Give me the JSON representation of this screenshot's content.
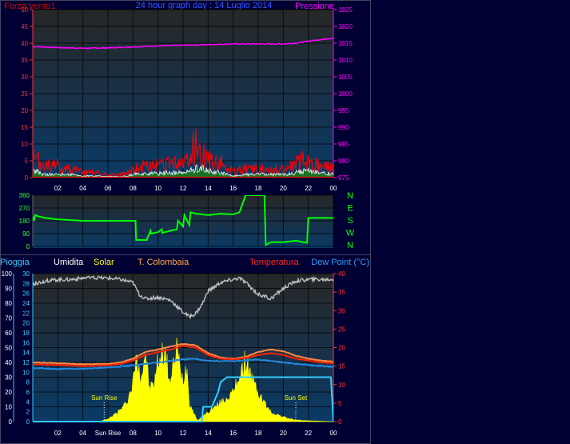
{
  "header": {
    "title": "24 hour graph day : 14 Luglio 2014",
    "wind_label": "Forza vento1",
    "pressure_label": "Pressione"
  },
  "lower_header": {
    "rain": "Pioggia",
    "humidity": "Umidita",
    "solar": "Solar",
    "colombaia": "T. Colombaia",
    "temperature": "Temperatura",
    "dewpoint": "Dew Point (°C)"
  },
  "colors": {
    "background": "#000033",
    "plot_gradient_top": "#272727",
    "plot_gradient_bottom": "#0a3a66",
    "wind": "#ff0000",
    "wind_avg": "#ffffff",
    "wind_low": "#1c7a1c",
    "pressure": "#ff00ff",
    "direction": "#00ff00",
    "humidity": "#c0c0c0",
    "solar": "#ffff00",
    "rain": "#33ccff",
    "temperature": "#ff2200",
    "colombaia": "#ff8844",
    "dewpoint": "#2288dd",
    "axis_left": "#ff3333",
    "axis_rain": "#33ccff",
    "axis_right_pressure": "#ff00ff",
    "axis_right_temp": "#ff3333",
    "time_labels": "#ffffff"
  },
  "x_ticks": [
    "02",
    "04",
    "Sun Rise",
    "08",
    "10",
    "12",
    "14",
    "16",
    "18",
    "20",
    "22",
    "00"
  ],
  "chart_data": [
    {
      "type": "line",
      "name": "wind-pressure",
      "title": "24 hour graph day : 14 Luglio 2014",
      "xlabel": "",
      "ylabel": "Forza vento1",
      "y2label": "Pressione",
      "xlim": [
        0,
        24
      ],
      "ylim": [
        0,
        50
      ],
      "y_ticks": [
        0,
        5,
        10,
        15,
        20,
        25,
        30,
        35,
        40,
        45,
        50
      ],
      "y2lim": [
        975,
        1025
      ],
      "y2_ticks": [
        975,
        980,
        985,
        990,
        995,
        1000,
        1005,
        1010,
        1015,
        1020,
        1025
      ],
      "series": [
        {
          "name": "Pressione",
          "axis": "right",
          "x": [
            0,
            2,
            4,
            6,
            8,
            10,
            12,
            14,
            16,
            18,
            20,
            21,
            22,
            23,
            24
          ],
          "y": [
            1014.0,
            1013.7,
            1013.5,
            1013.6,
            1013.9,
            1014.2,
            1014.4,
            1014.6,
            1014.8,
            1014.8,
            1014.8,
            1015.0,
            1015.6,
            1016.1,
            1016.5
          ]
        }
      ],
      "wind_profile": {
        "x": [
          0,
          0.3,
          0.8,
          1.5,
          2,
          3,
          4,
          5,
          6,
          7,
          7.6,
          8,
          9,
          10,
          10.5,
          11,
          12,
          12.5,
          13,
          13.5,
          14,
          15,
          16,
          17,
          18,
          19,
          20,
          20.7,
          21.5,
          22.5,
          23,
          24
        ],
        "gust": [
          6,
          6,
          4,
          4,
          4,
          3,
          2,
          2,
          1,
          1,
          2,
          3,
          4,
          4,
          4,
          5,
          5,
          6,
          12,
          8,
          6,
          5,
          2,
          3,
          3,
          3,
          3,
          4,
          6,
          5,
          4,
          3
        ],
        "avg": [
          2,
          2,
          1,
          1,
          1,
          1,
          0.5,
          0.5,
          0.3,
          0.3,
          0.5,
          1,
          1.3,
          1.3,
          1.5,
          1.5,
          1.5,
          2,
          3,
          3,
          2,
          1.5,
          0.5,
          1,
          1,
          1,
          1,
          1.2,
          2,
          2,
          1.5,
          1
        ]
      }
    },
    {
      "type": "line",
      "name": "wind-direction",
      "xlim": [
        0,
        24
      ],
      "ylim": [
        0,
        360
      ],
      "y_ticks": [
        0,
        90,
        180,
        270,
        360
      ],
      "right_labels": [
        "N",
        "W",
        "S",
        "E",
        "N"
      ],
      "series": [
        {
          "name": "direction",
          "x": [
            0,
            0.1,
            0.2,
            0.5,
            1,
            2,
            3,
            4,
            5,
            6,
            7,
            8.2,
            8.25,
            9.1,
            9.15,
            9.4,
            9.45,
            10,
            10.3,
            10.35,
            11,
            11.5,
            11.6,
            12,
            12.1,
            12.5,
            12.6,
            13,
            14,
            15,
            16,
            16.5,
            17,
            17.5,
            18,
            18.5,
            18.6,
            19,
            20,
            21,
            21.9,
            22.0,
            23,
            24
          ],
          "y": [
            210,
            180,
            220,
            210,
            200,
            190,
            185,
            180,
            180,
            180,
            180,
            180,
            45,
            45,
            60,
            110,
            90,
            100,
            120,
            95,
            110,
            120,
            180,
            140,
            220,
            150,
            240,
            230,
            220,
            230,
            225,
            240,
            360,
            360,
            360,
            360,
            10,
            30,
            30,
            40,
            25,
            200,
            200,
            200
          ]
        }
      ]
    },
    {
      "type": "area",
      "name": "solar-temp-humidity-rain",
      "xlim": [
        0,
        24
      ],
      "humidity": {
        "name": "Umidita",
        "ylim": [
          0,
          100
        ],
        "y_ticks": [
          0,
          10,
          20,
          30,
          40,
          50,
          60,
          70,
          80,
          90,
          100
        ],
        "x": [
          0,
          1,
          2,
          3,
          4,
          5,
          6,
          7,
          8,
          8.5,
          9,
          10,
          11,
          11.5,
          12,
          12.5,
          13,
          13.5,
          14,
          15,
          16,
          16.5,
          17,
          18,
          19,
          20,
          21,
          22,
          23,
          24
        ],
        "y": [
          93,
          95,
          96,
          96,
          97,
          97,
          97,
          96,
          94,
          86,
          83,
          84,
          82,
          78,
          74,
          71,
          73,
          79,
          88,
          94,
          96,
          97,
          94,
          86,
          83,
          90,
          95,
          96,
          96,
          96
        ]
      },
      "rain": {
        "name": "Pioggia",
        "ylim": [
          0,
          30
        ],
        "y_ticks": [
          0,
          2,
          4,
          6,
          8,
          10,
          12,
          14,
          16,
          18,
          20,
          22,
          24,
          26,
          28,
          30
        ],
        "x": [
          0,
          13.5,
          13.6,
          14.3,
          14.8,
          15,
          15.5,
          16,
          23.8,
          24
        ],
        "y": [
          0,
          0,
          3,
          3,
          6,
          8,
          9,
          9,
          9,
          0
        ]
      },
      "solar": {
        "name": "Solar",
        "ylim": [
          0,
          30
        ],
        "x": [
          0,
          5.3,
          6,
          6.5,
          7,
          7.5,
          8,
          8.2,
          8.7,
          9,
          9.3,
          9.7,
          10,
          10.5,
          11,
          11.5,
          11.8,
          12,
          12.3,
          12.5,
          13,
          13.2,
          13.5,
          14,
          14.5,
          15,
          15.5,
          16,
          16.5,
          17,
          17.5,
          18,
          18.5,
          19,
          20,
          21,
          24
        ],
        "y": [
          0,
          0,
          0.5,
          1.5,
          2.5,
          4,
          8,
          13,
          10,
          15,
          7,
          8,
          13,
          15,
          8,
          16,
          10,
          9,
          12,
          4,
          1,
          0.2,
          1,
          2,
          3,
          4,
          5,
          6,
          10,
          13,
          9,
          6,
          4,
          2,
          1,
          0.3,
          0
        ]
      },
      "temperature": {
        "name": "Temperatura",
        "ylim": [
          0,
          40
        ],
        "y_ticks": [
          0,
          5,
          10,
          15,
          20,
          25,
          30,
          35,
          40
        ],
        "x": [
          0,
          2,
          4,
          6,
          7,
          8,
          9,
          10,
          11,
          12,
          13,
          14,
          15,
          16,
          17,
          18,
          19,
          20,
          21,
          22,
          23,
          24
        ],
        "y": [
          15.5,
          15.3,
          15.0,
          15.2,
          15.6,
          16.5,
          18.0,
          18.8,
          19.5,
          20.5,
          20.0,
          18.0,
          17.0,
          16.8,
          17.2,
          18.0,
          18.5,
          18.0,
          17.0,
          16.5,
          16.0,
          15.8
        ]
      },
      "colombaia": {
        "name": "T. Colombaia",
        "ylim": [
          0,
          40
        ],
        "x": [
          0,
          2,
          4,
          6,
          7,
          8,
          9,
          10,
          11,
          12,
          13,
          14,
          15,
          16,
          17,
          18,
          19,
          20,
          21,
          22,
          23,
          24
        ],
        "y": [
          16.0,
          15.8,
          15.5,
          15.6,
          16.0,
          17.0,
          18.8,
          19.5,
          20.3,
          21.0,
          20.6,
          18.5,
          17.3,
          17.0,
          17.5,
          18.8,
          19.5,
          19.0,
          17.8,
          17.0,
          16.5,
          16.2
        ]
      },
      "dewpoint": {
        "name": "Dew Point (°C)",
        "ylim": [
          0,
          40
        ],
        "x": [
          0,
          2,
          4,
          6,
          8,
          10,
          12,
          13,
          14,
          16,
          18,
          20,
          22,
          24
        ],
        "y": [
          14.5,
          14.2,
          14.3,
          14.6,
          15.2,
          16.0,
          16.8,
          17.0,
          16.4,
          16.3,
          16.8,
          16.0,
          15.3,
          14.8
        ]
      },
      "sun_rise_label": "Sun Rise",
      "sun_set_label": "Sun Set",
      "sun_rise_x": 5.7,
      "sun_set_x": 21.0
    }
  ]
}
